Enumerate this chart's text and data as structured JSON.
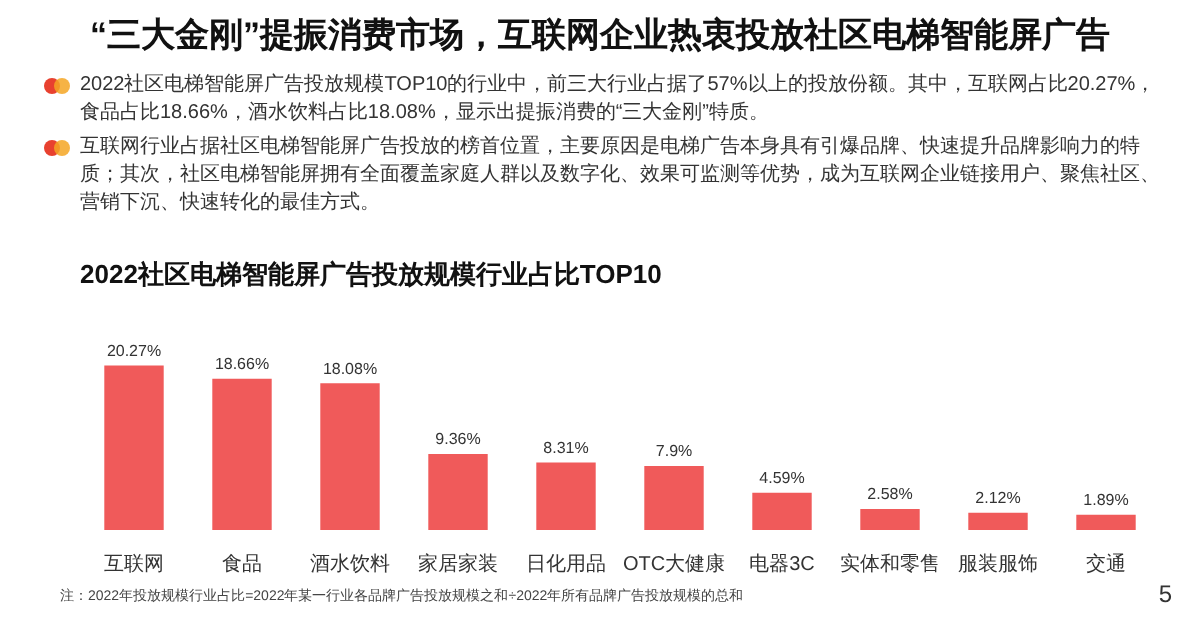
{
  "chart_data": {
    "type": "bar",
    "title": "“三大金刚”提振消费市场，互联网企业热衷投放社区电梯智能屏广告",
    "subtitle": "2022社区电梯智能屏广告投放规模行业占比TOP10",
    "categories": [
      "互联网",
      "食品",
      "酒水饮料",
      "家居家装",
      "日化用品",
      "OTC大健康",
      "电器3C",
      "实体和零售",
      "服装服饰",
      "交通"
    ],
    "values": [
      20.27,
      18.66,
      18.08,
      9.36,
      8.31,
      7.9,
      4.59,
      2.58,
      2.12,
      1.89
    ],
    "value_labels": [
      "20.27%",
      "18.66%",
      "18.08%",
      "9.36%",
      "8.31%",
      "7.9%",
      "4.59%",
      "2.58%",
      "2.12%",
      "1.89%"
    ],
    "color": "#f05a5a",
    "annotations": [
      "2022社区电梯智能屏广告投放规模TOP10的行业中，前三大行业占据了57%以上的投放份额。其中，互联网占比20.27%，食品占比18.66%，酒水饮料占比18.08%，显示出提振消费的“三大金刚”特质。",
      "互联网行业占据社区电梯智能屏广告投放的榜首位置，主要原因是电梯广告本身具有引爆品牌、快速提升品牌影响力的特质；其次，社区电梯智能屏拥有全面覆盖家庭人群以及数字化、效果可监测等优势，成为互联网企业链接用户、聚焦社区、营销下沉、快速转化的最佳方式。",
      "注：2022年投放规模行业占比=2022年某一行业各品牌广告投放规模之和÷2022年所有品牌广告投放规模的总和",
      "5"
    ],
    "grid": false,
    "legend": false
  }
}
